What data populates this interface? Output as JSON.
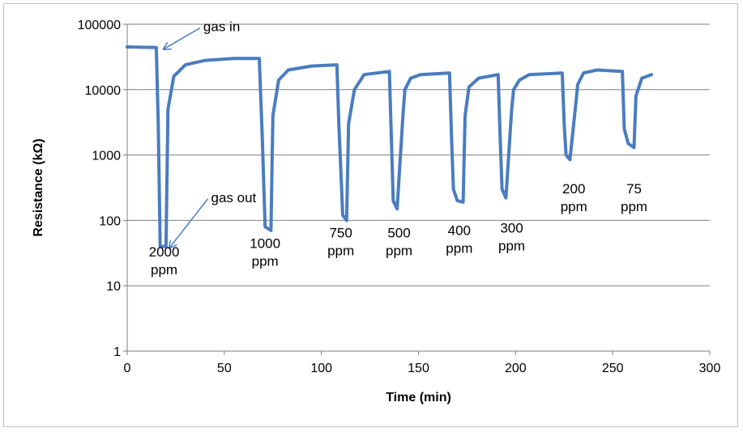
{
  "chart_data": {
    "type": "line",
    "title": "",
    "xlabel": "Time (min)",
    "ylabel": "Resistance (kΩ)",
    "xlim": [
      0,
      300
    ],
    "ylim": [
      1,
      100000
    ],
    "y_scale": "log",
    "grid": "horizontal",
    "legend": "none",
    "colors": {
      "series": "#4a7cc0",
      "grid": "#7f7f7f",
      "arrow": "#4a7cc0"
    },
    "x_ticks": [
      "0",
      "50",
      "100",
      "150",
      "200",
      "250",
      "300"
    ],
    "y_ticks": [
      "1",
      "10",
      "100",
      "1000",
      "10000",
      "100000"
    ],
    "series": [
      {
        "x": [
          0,
          15,
          16,
          17,
          20,
          21,
          24,
          30,
          40,
          55,
          68,
          69.5,
          71,
          74,
          75,
          78,
          83,
          95,
          108,
          109,
          111,
          113,
          114,
          117,
          122,
          135,
          136,
          137,
          139,
          142,
          143,
          146,
          151,
          166,
          167,
          168,
          170,
          173,
          174,
          176,
          181,
          191,
          192,
          193,
          195,
          198,
          199,
          202,
          207,
          224,
          225,
          226,
          228,
          231,
          232,
          235,
          242,
          255,
          256,
          258,
          261,
          262,
          265,
          270
        ],
        "y": [
          45000,
          44000,
          3000,
          40,
          40,
          5000,
          16000,
          24000,
          28000,
          30000,
          30000,
          2000,
          80,
          70,
          4000,
          14000,
          20000,
          23000,
          24000,
          3000,
          120,
          100,
          3000,
          10000,
          17000,
          19000,
          2000,
          200,
          150,
          4000,
          10000,
          15000,
          17000,
          18000,
          2000,
          300,
          200,
          190,
          4000,
          11000,
          15000,
          17000,
          2000,
          300,
          220,
          5000,
          10000,
          14000,
          17000,
          18000,
          3000,
          1000,
          850,
          6000,
          12000,
          18000,
          20000,
          19000,
          2500,
          1500,
          1300,
          8000,
          15000,
          17000
        ]
      }
    ],
    "annotations": [
      {
        "text": "gas in",
        "x": 20,
        "y": 70000,
        "arrow_to": [
          17,
          44000
        ]
      },
      {
        "text": "gas out",
        "x": 24,
        "y": 170,
        "arrow_to": [
          20,
          40
        ]
      },
      {
        "text": "2000",
        "x": 19,
        "y": 28,
        "line2": "ppm"
      },
      {
        "text": "1000",
        "x": 71,
        "y": 38,
        "line2": "ppm"
      },
      {
        "text": "750",
        "x": 110,
        "y": 55,
        "line2": "ppm"
      },
      {
        "text": "500",
        "x": 140,
        "y": 55,
        "line2": "ppm"
      },
      {
        "text": "400",
        "x": 171,
        "y": 60,
        "line2": "ppm"
      },
      {
        "text": "300",
        "x": 198,
        "y": 65,
        "line2": "ppm"
      },
      {
        "text": "200",
        "x": 230,
        "y": 260,
        "line2": "ppm"
      },
      {
        "text": "75",
        "x": 261,
        "y": 260,
        "line2": "ppm"
      }
    ]
  }
}
